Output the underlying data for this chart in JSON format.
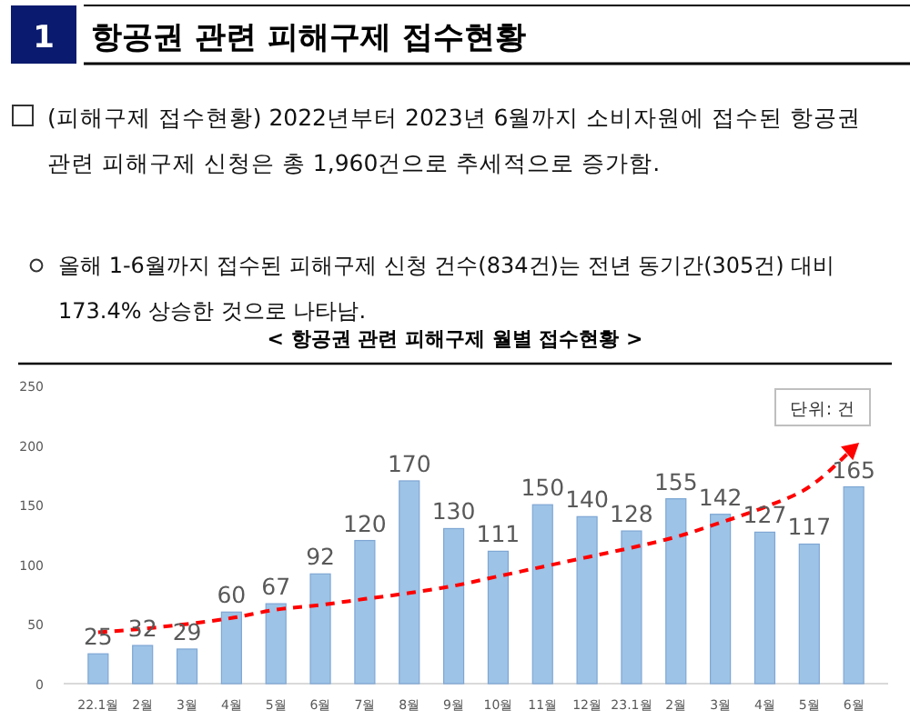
{
  "chart_data": {
    "type": "bar",
    "title": "항공권 관련 피해구제 접수현황",
    "subtitle": "< 항공권 관련 피해구제 월별 접수현황 >",
    "annotations": [
      "1",
      "(피해구제 접수현황) 2022년부터 2023년 6월까지 소비자원에 접수된 항공권\n관련 피해구제 신청은 총 1,960건으로 추세적으로 증가함.",
      "올해 1-6월까지 접수된 피해구제 신청 건수(834건)는 전년 동기간(305건) 대비\n173.4% 상승한 것으로 나타남.",
      "단위: 건"
    ],
    "categories": [
      "22.1월",
      "2월",
      "3월",
      "4월",
      "5월",
      "6월",
      "7월",
      "8월",
      "9월",
      "10월",
      "11월",
      "12월",
      "23.1월",
      "2월",
      "3월",
      "4월",
      "5월",
      "6월"
    ],
    "series": [
      {
        "color": "#9dc3e6",
        "values": [
          25,
          32,
          29,
          60,
          67,
          92,
          120,
          170,
          130,
          111,
          150,
          140,
          128,
          155,
          142,
          127,
          117,
          165
        ],
        "value_labels": [
          "25",
          "32",
          "29",
          "60",
          "67",
          "92",
          "120",
          "170",
          "130",
          "111",
          "150",
          "140",
          "128",
          "155",
          "142",
          "127",
          "117",
          "165"
        ]
      },
      {
        "type": "line",
        "color": "#ff0000",
        "line_style": "dashed",
        "marker": "none",
        "values": [
          43,
          46,
          50,
          55,
          62,
          66,
          71,
          76,
          82,
          90,
          98,
          106,
          114,
          123,
          135,
          148,
          165,
          198
        ]
      }
    ],
    "ylim": [
      0,
      250
    ],
    "yticks": [
      0,
      50,
      100,
      150,
      200,
      250
    ],
    "grid": false
  }
}
